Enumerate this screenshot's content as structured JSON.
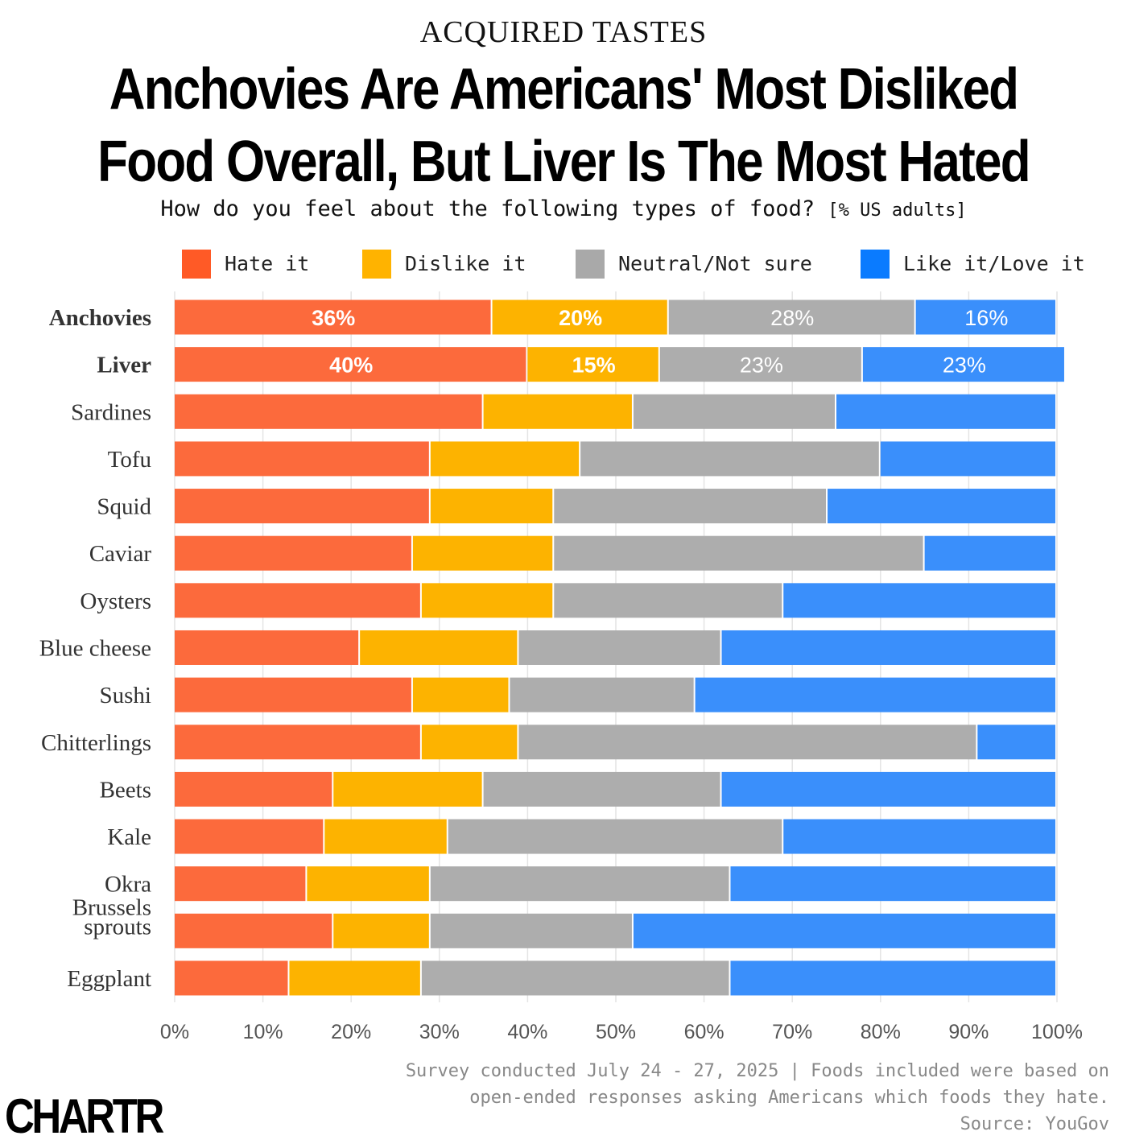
{
  "kicker": "ACQUIRED TASTES",
  "title_line1": "Anchovies Are Americans' Most Disliked",
  "title_line2": "Food Overall, But Liver Is The Most Hated",
  "subtitle": "How do you feel about the following types of food?",
  "subtitle_unit": "[% US adults]",
  "footer": {
    "line1": "Survey conducted July 24 - 27, 2025 | Foods included were based on",
    "line2": "open-ended responses asking Americans which foods they hate.",
    "line3": "Source: YouGov"
  },
  "logo": "CHARTR",
  "chart_data": {
    "type": "bar",
    "orientation": "horizontal",
    "stacked": true,
    "xlim": [
      0,
      100
    ],
    "grid": true,
    "legend_placement": "top",
    "x_ticks": [
      "0%",
      "10%",
      "20%",
      "30%",
      "40%",
      "50%",
      "60%",
      "70%",
      "80%",
      "90%",
      "100%"
    ],
    "categories": [
      "Anchovies",
      "Liver",
      "Sardines",
      "Tofu",
      "Squid",
      "Caviar",
      "Oysters",
      "Blue cheese",
      "Sushi",
      "Chitterlings",
      "Beets",
      "Kale",
      "Okra",
      "Brussels sprouts",
      "Eggplant"
    ],
    "bold_categories": [
      "Anchovies",
      "Liver"
    ],
    "series": [
      {
        "name": "Hate it",
        "color": "#FC6A3C",
        "legend_color": "#FF5A26",
        "values": [
          36,
          40,
          35,
          29,
          29,
          27,
          28,
          21,
          27,
          28,
          18,
          17,
          15,
          18,
          13
        ]
      },
      {
        "name": "Dislike it",
        "color": "#FDB300",
        "legend_color": "#FFB300",
        "values": [
          20,
          15,
          17,
          17,
          14,
          16,
          15,
          18,
          11,
          11,
          17,
          14,
          14,
          11,
          15
        ]
      },
      {
        "name": "Neutral/Not sure",
        "color": "#ADADAD",
        "legend_color": "#A9A9A9",
        "values": [
          28,
          23,
          23,
          34,
          31,
          42,
          26,
          23,
          21,
          52,
          27,
          38,
          34,
          23,
          35
        ]
      },
      {
        "name": "Like it/Love it",
        "color": "#3A8FFB",
        "legend_color": "#0A7BFF",
        "values": [
          16,
          23,
          25,
          20,
          26,
          15,
          31,
          38,
          41,
          9,
          38,
          31,
          37,
          48,
          37
        ]
      }
    ],
    "data_labels": [
      [
        "36%",
        "20%",
        "28%",
        "16%"
      ],
      [
        "40%",
        "15%",
        "23%",
        "23%"
      ]
    ]
  }
}
